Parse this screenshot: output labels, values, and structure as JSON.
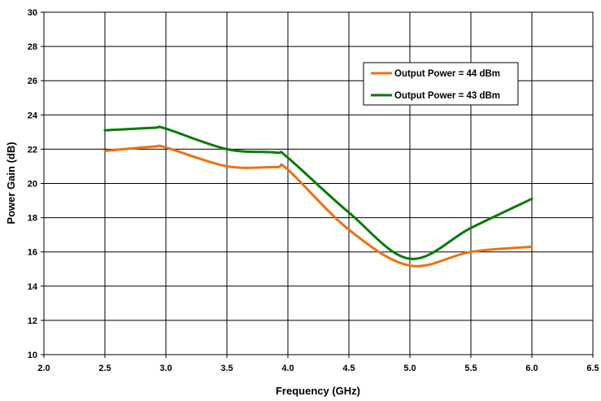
{
  "chart_data": {
    "type": "line",
    "title": "",
    "xlabel": "Frequency (GHz)",
    "ylabel": "Power Gain (dB)",
    "xlim": [
      2.0,
      6.5
    ],
    "ylim": [
      10,
      30
    ],
    "xticks": [
      "2.0",
      "2.5",
      "3.0",
      "3.5",
      "4.0",
      "4.5",
      "5.0",
      "5.5",
      "6.0",
      "6.5"
    ],
    "yticks": [
      "10",
      "12",
      "14",
      "16",
      "18",
      "20",
      "22",
      "24",
      "26",
      "28",
      "30"
    ],
    "grid": true,
    "legend_position": "top-right",
    "series": [
      {
        "name": "Output Power = 44 dBm",
        "color": "#F07010",
        "x": [
          2.5,
          2.9,
          3.0,
          3.5,
          3.9,
          4.0,
          4.5,
          5.0,
          5.5,
          6.0
        ],
        "y": [
          21.9,
          22.15,
          22.1,
          21.0,
          20.95,
          20.8,
          17.3,
          15.2,
          16.0,
          16.3
        ]
      },
      {
        "name": "Output Power = 43 dBm",
        "color": "#0A7A0A",
        "x": [
          2.5,
          2.9,
          3.0,
          3.5,
          3.9,
          4.0,
          4.5,
          5.0,
          5.5,
          6.0
        ],
        "y": [
          23.1,
          23.25,
          23.2,
          22.0,
          21.8,
          21.5,
          18.3,
          15.6,
          17.4,
          19.1
        ]
      }
    ]
  }
}
